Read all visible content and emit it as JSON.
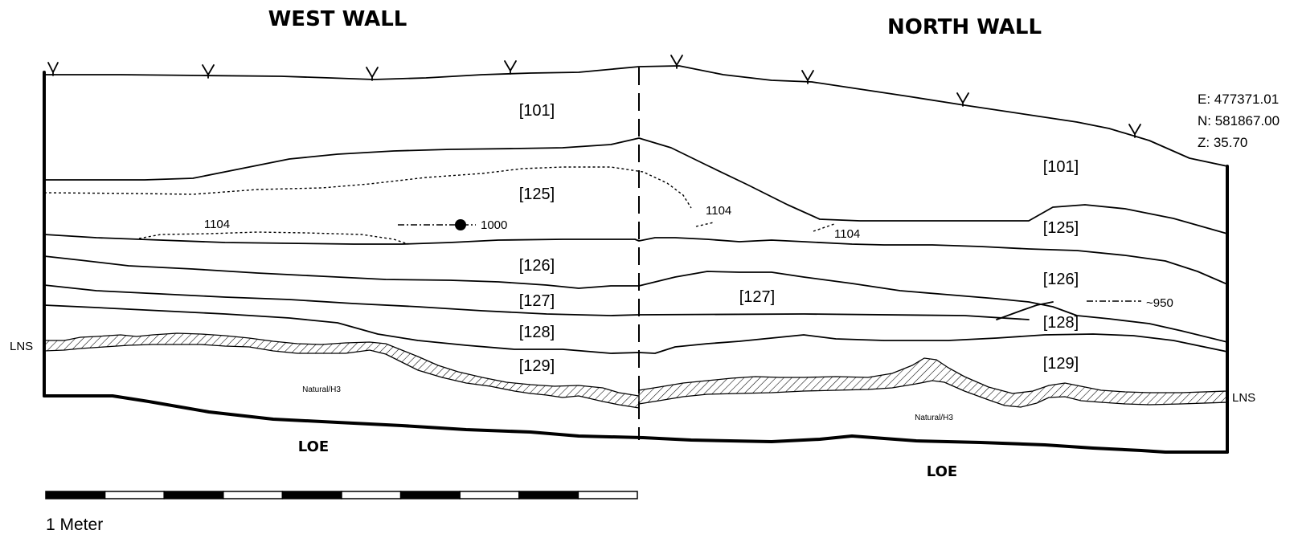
{
  "walls": {
    "west": {
      "title": "WEST WALL"
    },
    "north": {
      "title": "NORTH WALL"
    }
  },
  "coordinates": {
    "e": "E: 477371.01",
    "n": "N: 581867.00",
    "z": "Z: 35.70"
  },
  "west_labels": {
    "c101": "[101]",
    "c125": "[125]",
    "c126": "[126]",
    "c127": "[127]",
    "c128": "[128]",
    "c129": "[129]",
    "f1104": "1104",
    "f1000": "1000",
    "natural": "Natural/H3",
    "lns": "LNS",
    "loe": "LOE"
  },
  "north_labels": {
    "c101": "[101]",
    "c125": "[125]",
    "c126": "[126]",
    "c127": "[127]",
    "c128": "[128]",
    "c129": "[129]",
    "f1104_a": "1104",
    "f1104_b": "1104",
    "f950": "~950",
    "natural": "Natural/H3",
    "lns": "LNS",
    "loe": "LOE"
  },
  "scale_bar": {
    "label": "1 Meter",
    "segments": 10
  }
}
